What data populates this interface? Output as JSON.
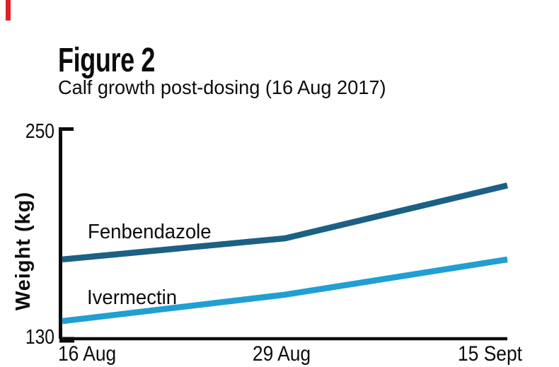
{
  "accent": {
    "red_bar_color": "#de2127"
  },
  "header": {
    "title": "Figure 2",
    "subtitle": "Calf growth post-dosing (16 Aug 2017)"
  },
  "chart_data": {
    "type": "line",
    "title": "Figure 2",
    "subtitle": "Calf growth post-dosing (16 Aug 2017)",
    "categories": [
      "16 Aug",
      "29 Aug",
      "15 Sept"
    ],
    "series": [
      {
        "name": "Fenbendazole",
        "values": [
          175,
          187,
          217
        ],
        "color": "#1c6084"
      },
      {
        "name": "Ivermectin",
        "values": [
          140,
          155,
          175
        ],
        "color": "#219fd2"
      }
    ],
    "xlabel": "",
    "ylabel": "Weight (kg)",
    "ylim": [
      130,
      250
    ],
    "y_ticks": [
      "250",
      "130"
    ],
    "units": "kg",
    "grid": false,
    "legend": "inline-labels-on-lines",
    "axis_color": "#0c0c0c"
  }
}
